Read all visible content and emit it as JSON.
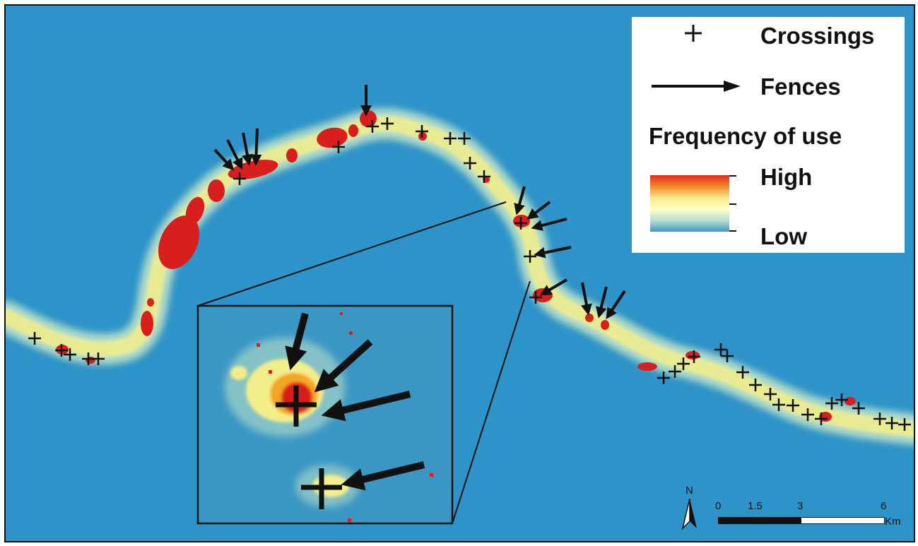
{
  "map": {
    "background_color": "#2E93C8",
    "heat_colors": [
      "#D91E1E",
      "#F5A623",
      "#F4EE8A",
      "#BFE3C9"
    ],
    "features": {
      "fences_symbol": "arrow-icon",
      "crossings_symbol": "plus-icon"
    }
  },
  "legend": {
    "crossings_label": "Crossings",
    "fences_label": "Fences",
    "frequency_title": "Frequency of use",
    "high_label": "High",
    "low_label": "Low",
    "gradient_colors": [
      "#E02A1E",
      "#F28A2A",
      "#F7E98C",
      "#FFFFC8",
      "#B8DFCE",
      "#3D97C7"
    ]
  },
  "scale": {
    "north_label": "N",
    "tick_labels": [
      "0",
      "1.5",
      "3",
      "6"
    ],
    "unit": "Km"
  }
}
